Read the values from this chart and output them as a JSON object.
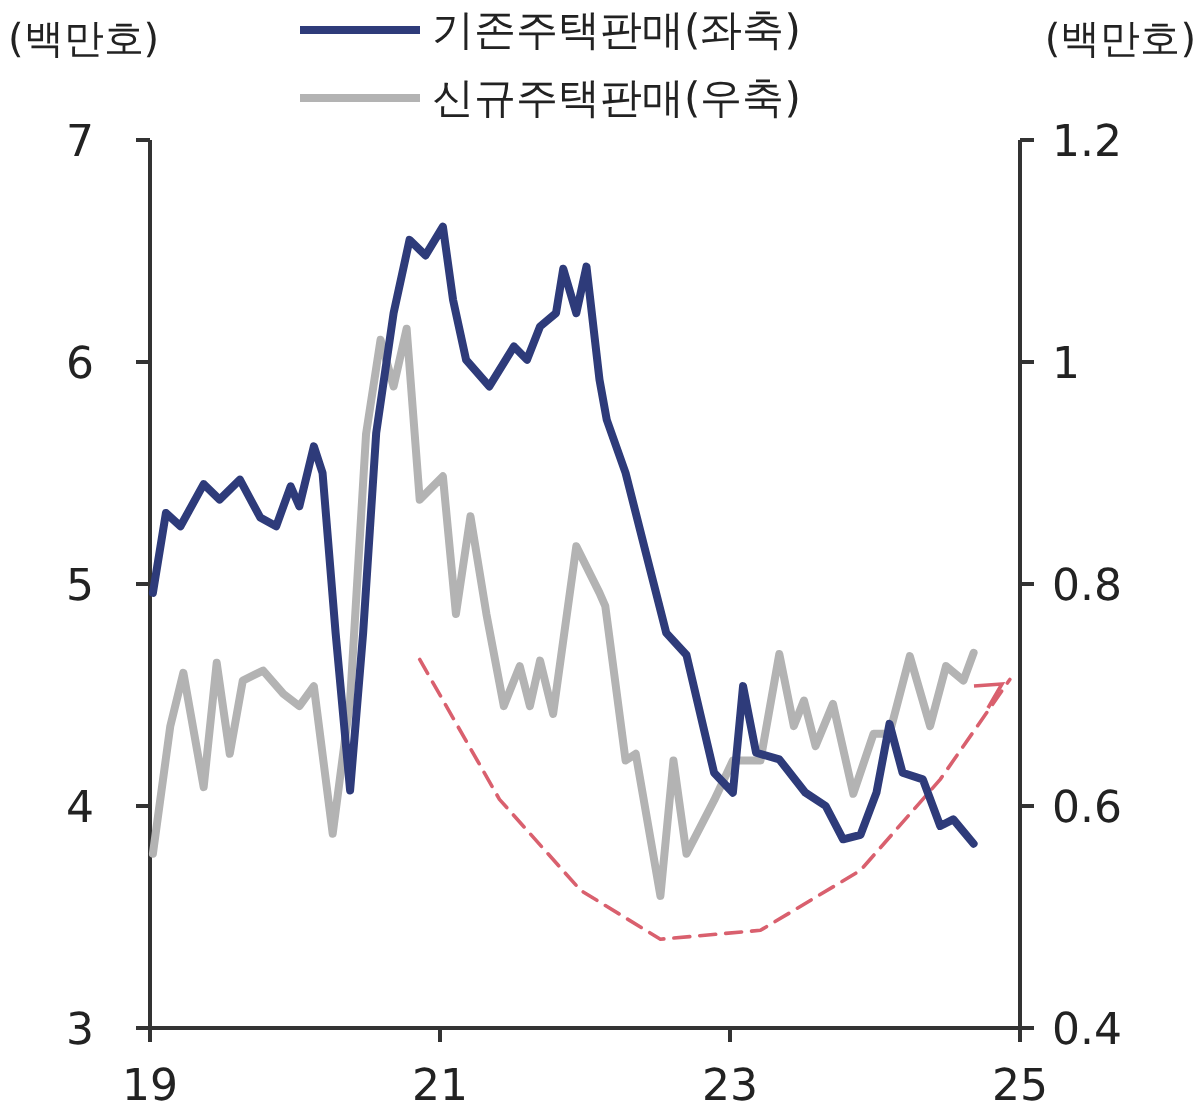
{
  "chart_data": {
    "type": "line",
    "ylabel": "(백만호)",
    "y2label": "(백만호)",
    "legend": "top",
    "grid": false,
    "xlim": [
      19,
      25
    ],
    "xticks": [
      19,
      21,
      23,
      25
    ],
    "ylim": [
      3,
      7
    ],
    "yticks": [
      3,
      4,
      5,
      6,
      7
    ],
    "y2lim": [
      0.4,
      1.2
    ],
    "y2ticks": [
      0.4,
      0.6,
      0.8,
      1.0,
      1.2
    ],
    "series": [
      {
        "name": "기존주택판매(좌축)",
        "color": "#2e3b7a",
        "x": [
          19.02,
          19.11,
          19.21,
          19.37,
          19.48,
          19.62,
          19.76,
          19.87,
          19.97,
          20.03,
          20.13,
          20.19,
          20.28,
          20.38,
          20.47,
          20.56,
          20.68,
          20.79,
          20.9,
          21.02,
          21.09,
          21.18,
          21.34,
          21.51,
          21.6,
          21.69,
          21.8,
          21.85,
          21.94,
          22.01,
          22.1,
          22.15,
          22.28,
          22.42,
          22.56,
          22.7,
          22.89,
          23.02,
          23.09,
          23.18,
          23.34,
          23.52,
          23.66,
          23.78,
          23.9,
          24.01,
          24.1,
          24.19,
          24.33,
          24.45,
          24.54,
          24.68
        ],
        "values": [
          4.96,
          5.32,
          5.26,
          5.45,
          5.38,
          5.47,
          5.3,
          5.26,
          5.44,
          5.35,
          5.62,
          5.5,
          4.78,
          4.07,
          4.78,
          5.68,
          6.22,
          6.55,
          6.48,
          6.61,
          6.28,
          6.01,
          5.89,
          6.07,
          6.01,
          6.16,
          6.22,
          6.42,
          6.22,
          6.43,
          5.92,
          5.74,
          5.5,
          5.14,
          4.78,
          4.68,
          4.15,
          4.06,
          4.54,
          4.24,
          4.21,
          4.06,
          4.0,
          3.85,
          3.87,
          4.06,
          4.37,
          4.15,
          4.12,
          3.91,
          3.94,
          3.83
        ]
      },
      {
        "name": "신규주택판매(우축)",
        "color": "#b3b3b3",
        "axis": "y2",
        "x": [
          19.02,
          19.14,
          19.23,
          19.37,
          19.46,
          19.55,
          19.64,
          19.78,
          19.92,
          20.03,
          20.13,
          20.26,
          20.38,
          20.49,
          20.59,
          20.68,
          20.77,
          20.86,
          21.02,
          21.11,
          21.21,
          21.32,
          21.44,
          21.55,
          21.62,
          21.69,
          21.78,
          21.94,
          22.1,
          22.14,
          22.28,
          22.35,
          22.52,
          22.61,
          22.7,
          22.89,
          23.02,
          23.21,
          23.34,
          23.44,
          23.51,
          23.59,
          23.71,
          23.85,
          23.99,
          24.1,
          24.24,
          24.38,
          24.49,
          24.61,
          24.68
        ],
        "values": [
          0.557,
          0.672,
          0.72,
          0.617,
          0.729,
          0.647,
          0.713,
          0.722,
          0.701,
          0.69,
          0.708,
          0.575,
          0.695,
          0.935,
          1.02,
          0.978,
          1.03,
          0.876,
          0.897,
          0.773,
          0.861,
          0.773,
          0.69,
          0.726,
          0.69,
          0.731,
          0.683,
          0.834,
          0.792,
          0.78,
          0.641,
          0.647,
          0.519,
          0.641,
          0.557,
          0.605,
          0.641,
          0.641,
          0.737,
          0.672,
          0.695,
          0.654,
          0.692,
          0.611,
          0.665,
          0.665,
          0.735,
          0.672,
          0.726,
          0.713,
          0.738
        ]
      },
      {
        "type": "line",
        "color": "#d9606e",
        "line_style": "dashed",
        "x": [
          20.86,
          21.41,
          21.97,
          22.52,
          23.21,
          23.9,
          24.45,
          24.93
        ],
        "values": [
          4.66,
          4.03,
          3.62,
          3.4,
          3.44,
          3.71,
          4.12,
          4.57
        ]
      }
    ]
  }
}
